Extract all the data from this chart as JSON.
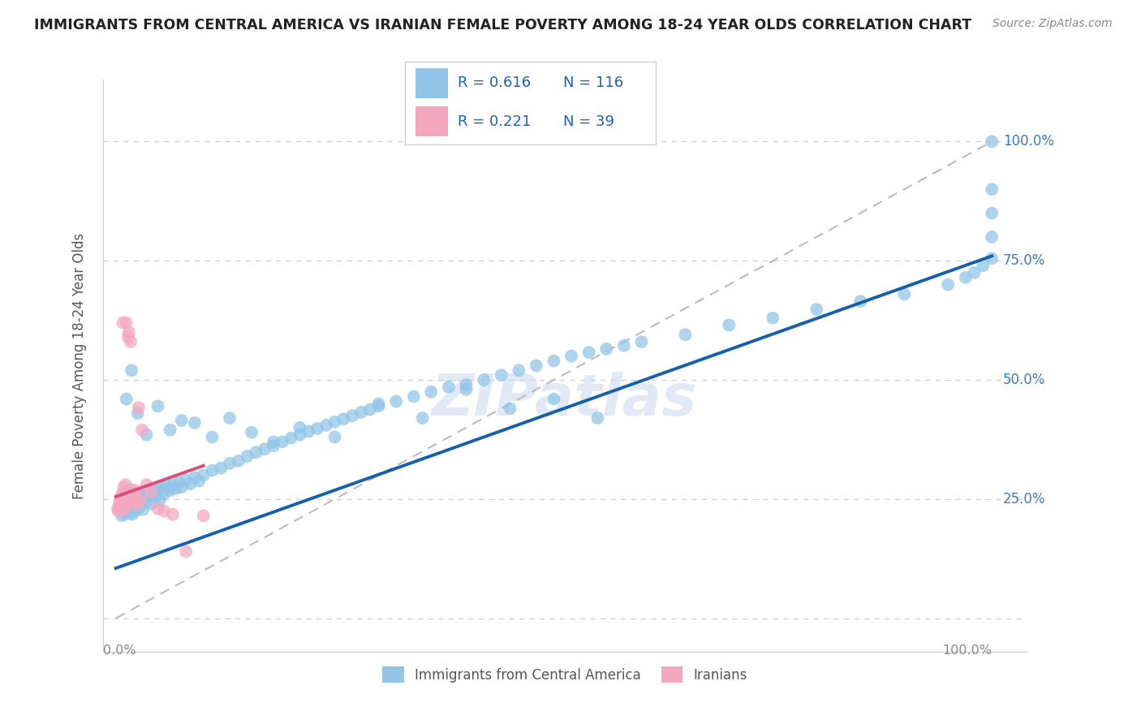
{
  "title": "IMMIGRANTS FROM CENTRAL AMERICA VS IRANIAN FEMALE POVERTY AMONG 18-24 YEAR OLDS CORRELATION CHART",
  "source": "Source: ZipAtlas.com",
  "ylabel": "Female Poverty Among 18-24 Year Olds",
  "legend_r1": "R = 0.616",
  "legend_n1": "N = 116",
  "legend_r2": "R = 0.221",
  "legend_n2": "N = 39",
  "color_blue": "#92c5e8",
  "color_pink": "#f4a8c0",
  "line_blue": "#1560a8",
  "line_pink": "#d94f7a",
  "line_gray": "#bbbbbb",
  "background": "#ffffff",
  "grid_color": "#cccccc",
  "label_bottom_1": "Immigrants from Central America",
  "label_bottom_2": "Iranians",
  "blue_x": [
    0.005,
    0.007,
    0.008,
    0.009,
    0.01,
    0.011,
    0.012,
    0.013,
    0.014,
    0.015,
    0.016,
    0.017,
    0.018,
    0.019,
    0.02,
    0.021,
    0.022,
    0.023,
    0.024,
    0.025,
    0.027,
    0.028,
    0.03,
    0.031,
    0.033,
    0.035,
    0.037,
    0.039,
    0.041,
    0.043,
    0.045,
    0.047,
    0.05,
    0.052,
    0.055,
    0.058,
    0.061,
    0.065,
    0.068,
    0.072,
    0.075,
    0.08,
    0.085,
    0.09,
    0.095,
    0.1,
    0.11,
    0.12,
    0.13,
    0.14,
    0.15,
    0.16,
    0.17,
    0.18,
    0.19,
    0.2,
    0.21,
    0.22,
    0.23,
    0.24,
    0.25,
    0.26,
    0.27,
    0.28,
    0.29,
    0.3,
    0.32,
    0.34,
    0.36,
    0.38,
    0.4,
    0.42,
    0.44,
    0.46,
    0.48,
    0.5,
    0.52,
    0.54,
    0.56,
    0.58,
    0.6,
    0.65,
    0.7,
    0.75,
    0.8,
    0.85,
    0.9,
    0.95,
    0.97,
    0.98,
    0.99,
    1.0,
    1.0,
    1.0,
    1.0,
    1.0,
    0.012,
    0.018,
    0.025,
    0.035,
    0.048,
    0.062,
    0.075,
    0.09,
    0.11,
    0.13,
    0.155,
    0.18,
    0.21,
    0.25,
    0.3,
    0.35,
    0.4,
    0.45,
    0.5,
    0.55
  ],
  "blue_y": [
    0.23,
    0.215,
    0.225,
    0.22,
    0.235,
    0.24,
    0.228,
    0.232,
    0.245,
    0.22,
    0.235,
    0.228,
    0.242,
    0.218,
    0.25,
    0.238,
    0.225,
    0.248,
    0.23,
    0.26,
    0.235,
    0.242,
    0.255,
    0.228,
    0.265,
    0.245,
    0.258,
    0.27,
    0.24,
    0.265,
    0.255,
    0.27,
    0.248,
    0.275,
    0.262,
    0.278,
    0.268,
    0.28,
    0.272,
    0.285,
    0.275,
    0.29,
    0.282,
    0.295,
    0.288,
    0.3,
    0.31,
    0.315,
    0.325,
    0.33,
    0.34,
    0.348,
    0.355,
    0.362,
    0.37,
    0.378,
    0.385,
    0.392,
    0.398,
    0.405,
    0.412,
    0.418,
    0.425,
    0.432,
    0.438,
    0.445,
    0.455,
    0.465,
    0.475,
    0.485,
    0.49,
    0.5,
    0.51,
    0.52,
    0.53,
    0.54,
    0.55,
    0.558,
    0.565,
    0.572,
    0.58,
    0.595,
    0.615,
    0.63,
    0.648,
    0.665,
    0.68,
    0.7,
    0.715,
    0.725,
    0.74,
    0.755,
    0.8,
    0.85,
    0.9,
    1.0,
    0.46,
    0.52,
    0.43,
    0.385,
    0.445,
    0.395,
    0.415,
    0.41,
    0.38,
    0.42,
    0.39,
    0.37,
    0.4,
    0.38,
    0.45,
    0.42,
    0.48,
    0.44,
    0.46,
    0.42
  ],
  "pink_x": [
    0.002,
    0.003,
    0.004,
    0.005,
    0.005,
    0.006,
    0.006,
    0.007,
    0.007,
    0.008,
    0.008,
    0.009,
    0.009,
    0.01,
    0.01,
    0.011,
    0.011,
    0.012,
    0.013,
    0.014,
    0.015,
    0.016,
    0.017,
    0.018,
    0.019,
    0.02,
    0.021,
    0.022,
    0.024,
    0.026,
    0.028,
    0.03,
    0.035,
    0.04,
    0.048,
    0.055,
    0.065,
    0.08,
    0.1
  ],
  "pink_y": [
    0.23,
    0.225,
    0.24,
    0.235,
    0.25,
    0.228,
    0.255,
    0.232,
    0.26,
    0.62,
    0.245,
    0.238,
    0.275,
    0.242,
    0.23,
    0.28,
    0.265,
    0.62,
    0.258,
    0.59,
    0.6,
    0.245,
    0.58,
    0.27,
    0.248,
    0.252,
    0.262,
    0.268,
    0.238,
    0.442,
    0.248,
    0.395,
    0.28,
    0.265,
    0.23,
    0.225,
    0.218,
    0.14,
    0.215
  ],
  "blue_regline_x": [
    0.0,
    1.0
  ],
  "blue_regline_y": [
    0.105,
    0.76
  ],
  "pink_regline_x": [
    0.0,
    0.1
  ],
  "pink_regline_y": [
    0.255,
    0.32
  ],
  "ref_line_x": [
    0.0,
    1.0
  ],
  "ref_line_y": [
    0.0,
    1.0
  ],
  "ytick_positions": [
    0.0,
    0.25,
    0.5,
    0.75,
    1.0
  ],
  "ytick_labels_right": [
    "",
    "25.0%",
    "50.0%",
    "75.0%",
    "100.0%"
  ],
  "xtick_positions": [
    0.0,
    1.0
  ],
  "xtick_labels": [
    "0.0%",
    "100.0%"
  ]
}
